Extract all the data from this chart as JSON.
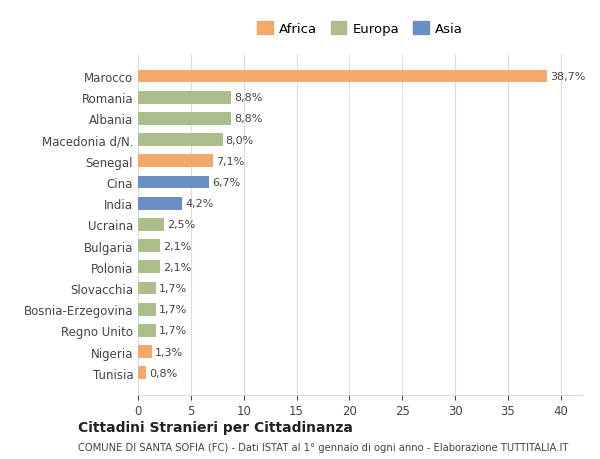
{
  "countries": [
    "Marocco",
    "Romania",
    "Albania",
    "Macedonia d/N.",
    "Senegal",
    "Cina",
    "India",
    "Ucraina",
    "Bulgaria",
    "Polonia",
    "Slovacchia",
    "Bosnia-Erzegovina",
    "Regno Unito",
    "Nigeria",
    "Tunisia"
  ],
  "values": [
    38.7,
    8.8,
    8.8,
    8.0,
    7.1,
    6.7,
    4.2,
    2.5,
    2.1,
    2.1,
    1.7,
    1.7,
    1.7,
    1.3,
    0.8
  ],
  "labels": [
    "38,7%",
    "8,8%",
    "8,8%",
    "8,0%",
    "7,1%",
    "6,7%",
    "4,2%",
    "2,5%",
    "2,1%",
    "2,1%",
    "1,7%",
    "1,7%",
    "1,7%",
    "1,3%",
    "0,8%"
  ],
  "continents": [
    "Africa",
    "Europa",
    "Europa",
    "Europa",
    "Africa",
    "Asia",
    "Asia",
    "Europa",
    "Europa",
    "Europa",
    "Europa",
    "Europa",
    "Europa",
    "Africa",
    "Africa"
  ],
  "colors": {
    "Africa": "#F4A96A",
    "Europa": "#ABBE8B",
    "Asia": "#6A8FC4"
  },
  "legend_labels": [
    "Africa",
    "Europa",
    "Asia"
  ],
  "title_bold": "Cittadini Stranieri per Cittadinanza",
  "subtitle": "COMUNE DI SANTA SOFIA (FC) - Dati ISTAT al 1° gennaio di ogni anno - Elaborazione TUTTITALIA.IT",
  "xlim": [
    0,
    42
  ],
  "xticks": [
    0,
    5,
    10,
    15,
    20,
    25,
    30,
    35,
    40
  ],
  "background_color": "#ffffff",
  "grid_color": "#dddddd"
}
